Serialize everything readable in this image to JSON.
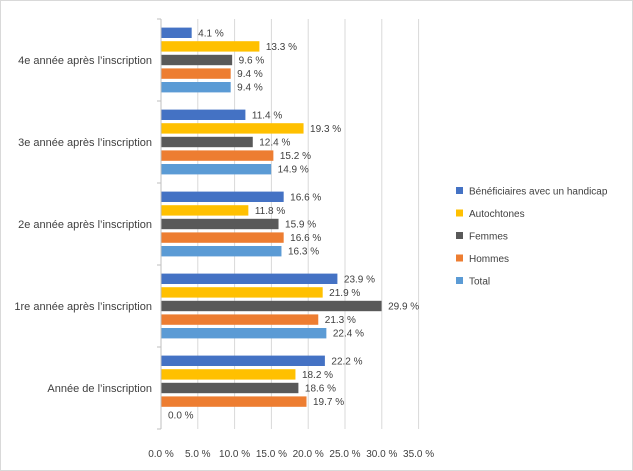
{
  "chart_data": {
    "type": "bar",
    "orientation": "horizontal",
    "categories": [
      "4e année après l’inscription",
      "3e année après l’inscription",
      "2e année après l’inscription",
      "1re année après l’inscription",
      "Année de l’inscription"
    ],
    "series": [
      {
        "name": "Bénéficiaires avec un handicap",
        "color": "#4472C4",
        "values": [
          4.1,
          11.4,
          16.6,
          23.9,
          22.2
        ],
        "labels": [
          "4.1 %",
          "11.4 %",
          "16.6 %",
          "23.9 %",
          "22.2 %"
        ]
      },
      {
        "name": "Autochtones",
        "color": "#FFC000",
        "values": [
          13.3,
          19.3,
          11.8,
          21.9,
          18.2
        ],
        "labels": [
          "13.3 %",
          "19.3 %",
          "11.8 %",
          "21.9 %",
          "18.2 %"
        ]
      },
      {
        "name": "Femmes",
        "color": "#595959",
        "values": [
          9.6,
          12.4,
          15.9,
          29.9,
          18.6
        ],
        "labels": [
          "9.6 %",
          "12.4 %",
          "15.9 %",
          "29.9 %",
          "18.6 %"
        ]
      },
      {
        "name": "Hommes",
        "color": "#ED7D31",
        "values": [
          9.4,
          15.2,
          16.6,
          21.3,
          19.7
        ],
        "labels": [
          "9.4 %",
          "15.2 %",
          "16.6 %",
          "21.3 %",
          "19.7 %"
        ]
      },
      {
        "name": "Total",
        "color": "#5B9BD5",
        "values": [
          9.4,
          14.9,
          16.3,
          22.4,
          0.0
        ],
        "labels": [
          "9.4 %",
          "14.9 %",
          "16.3 %",
          "22.4 %",
          "0.0 %"
        ]
      }
    ],
    "xlim": [
      0,
      35
    ],
    "x_ticks": [
      0,
      5,
      10,
      15,
      20,
      25,
      30,
      35
    ],
    "x_tick_labels": [
      "0.0 %",
      "5.0 %",
      "10.0 %",
      "15.0 %",
      "20.0 %",
      "25.0 %",
      "30.0 %",
      "35.0 %"
    ],
    "gridlines": "vertical",
    "legend_position": "right",
    "title": "",
    "xlabel": "",
    "ylabel": ""
  }
}
